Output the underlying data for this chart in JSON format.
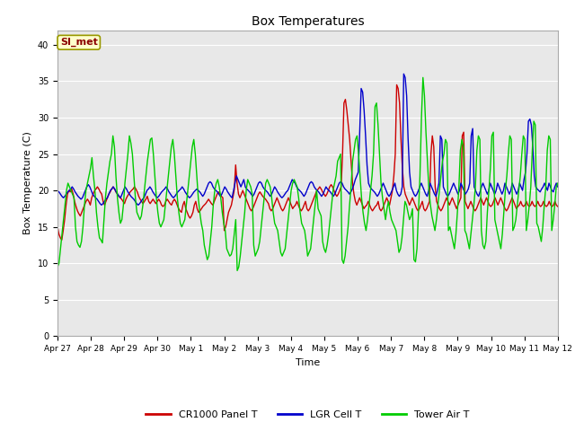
{
  "title": "Box Temperatures",
  "xlabel": "Time",
  "ylabel": "Box Temperature (C)",
  "ylim": [
    0,
    42
  ],
  "yticks": [
    0,
    5,
    10,
    15,
    20,
    25,
    30,
    35,
    40
  ],
  "plot_bg_color": "#e8e8e8",
  "fig_bg_color": "#ffffff",
  "annotation_text": "SI_met",
  "annotation_color": "#8b0000",
  "annotation_bg": "#ffffcc",
  "legend_labels": [
    "CR1000 Panel T",
    "LGR Cell T",
    "Tower Air T"
  ],
  "legend_colors": [
    "#cc0000",
    "#0000cc",
    "#00cc00"
  ],
  "xtick_labels": [
    "Apr 27",
    "Apr 28",
    "Apr 29",
    "Apr 30",
    "May 1",
    "May 2",
    "May 3",
    "May 4",
    "May 5",
    "May 6",
    "May 7",
    "May 8",
    "May 9",
    "May 10",
    "May 11",
    "May 12"
  ],
  "red_data": [
    15.0,
    14.0,
    13.5,
    13.2,
    14.5,
    16.0,
    18.0,
    19.5,
    20.0,
    19.8,
    20.2,
    19.5,
    18.5,
    17.8,
    17.2,
    16.8,
    16.5,
    17.0,
    17.5,
    18.0,
    18.5,
    18.8,
    18.5,
    18.0,
    19.0,
    19.5,
    20.0,
    20.2,
    20.5,
    20.2,
    19.8,
    19.5,
    18.5,
    18.0,
    18.5,
    19.0,
    19.5,
    19.8,
    20.2,
    20.5,
    20.2,
    19.8,
    19.5,
    19.2,
    19.0,
    18.8,
    18.5,
    18.2,
    18.8,
    19.2,
    19.5,
    19.8,
    20.0,
    20.2,
    20.5,
    20.2,
    19.8,
    19.2,
    18.8,
    18.5,
    18.2,
    18.5,
    18.8,
    19.2,
    18.5,
    18.2,
    18.5,
    18.8,
    18.5,
    18.2,
    18.5,
    18.8,
    18.5,
    18.0,
    17.8,
    18.0,
    18.5,
    18.8,
    18.5,
    18.2,
    18.0,
    18.5,
    18.8,
    18.5,
    18.0,
    17.5,
    17.2,
    17.0,
    18.0,
    18.5,
    17.5,
    17.0,
    16.5,
    16.2,
    16.5,
    17.0,
    18.0,
    18.5,
    17.5,
    17.0,
    17.2,
    17.5,
    17.8,
    18.0,
    18.2,
    18.5,
    18.8,
    18.5,
    18.2,
    18.0,
    18.5,
    19.0,
    19.5,
    19.8,
    19.5,
    19.2,
    19.0,
    14.5,
    15.0,
    16.0,
    17.0,
    17.5,
    18.0,
    19.0,
    20.0,
    23.5,
    21.0,
    19.5,
    19.0,
    19.5,
    20.0,
    19.5,
    19.0,
    18.5,
    18.0,
    17.5,
    17.2,
    17.5,
    18.0,
    18.5,
    19.0,
    19.5,
    19.8,
    19.5,
    19.2,
    19.0,
    18.8,
    18.5,
    18.2,
    17.5,
    17.2,
    17.5,
    18.0,
    18.5,
    19.0,
    18.5,
    18.0,
    17.5,
    17.2,
    17.5,
    18.0,
    18.5,
    19.0,
    18.5,
    18.0,
    17.5,
    17.8,
    18.0,
    18.5,
    18.0,
    17.5,
    17.2,
    17.5,
    18.0,
    18.5,
    17.5,
    17.2,
    17.5,
    18.0,
    18.5,
    19.0,
    19.5,
    20.0,
    20.2,
    20.5,
    20.2,
    19.8,
    19.5,
    19.2,
    19.5,
    20.0,
    20.5,
    20.8,
    20.5,
    20.0,
    19.5,
    19.2,
    19.5,
    20.0,
    20.5,
    25.0,
    32.0,
    32.5,
    31.0,
    29.0,
    27.0,
    24.0,
    21.0,
    19.5,
    18.5,
    18.0,
    18.5,
    19.0,
    18.5,
    18.0,
    17.5,
    17.8,
    18.0,
    18.5,
    18.0,
    17.5,
    17.2,
    17.5,
    17.8,
    18.0,
    18.5,
    17.5,
    17.2,
    17.5,
    18.0,
    18.5,
    19.0,
    18.5,
    18.0,
    19.0,
    20.0,
    22.0,
    25.0,
    34.5,
    34.0,
    32.0,
    27.0,
    23.0,
    20.5,
    19.5,
    19.0,
    18.5,
    18.0,
    18.5,
    19.0,
    18.5,
    18.0,
    17.5,
    17.2,
    17.5,
    18.0,
    18.5,
    17.5,
    17.2,
    17.5,
    18.0,
    18.5,
    25.0,
    27.5,
    26.0,
    20.5,
    18.5,
    18.0,
    17.5,
    17.2,
    17.5,
    18.0,
    18.5,
    19.0,
    18.5,
    18.0,
    18.5,
    19.0,
    18.5,
    18.0,
    17.5,
    18.0,
    18.5,
    19.0,
    27.5,
    28.0,
    18.5,
    18.0,
    17.5,
    18.0,
    18.5,
    18.0,
    17.5,
    17.2,
    17.5,
    18.0,
    18.5,
    19.0,
    18.5,
    18.0,
    18.5,
    19.0,
    18.5,
    18.0,
    17.8,
    18.0,
    18.5,
    19.0,
    18.5,
    18.0,
    18.5,
    19.0,
    18.5,
    18.0,
    17.5,
    17.2,
    17.5,
    18.0,
    18.5,
    19.0,
    18.5,
    18.0,
    17.5,
    17.8,
    18.0,
    18.5,
    18.0,
    17.8,
    18.0,
    18.5,
    18.0,
    17.8,
    18.0,
    18.5,
    18.0,
    17.8,
    18.0,
    18.5,
    18.0,
    17.8,
    18.0,
    18.5,
    18.0,
    17.8,
    18.0,
    18.5,
    18.0,
    17.8,
    18.0,
    18.5,
    18.0,
    17.8
  ],
  "blue_data": [
    20.0,
    19.8,
    19.5,
    19.2,
    19.0,
    19.2,
    19.5,
    19.8,
    20.0,
    20.2,
    20.5,
    20.2,
    19.8,
    19.5,
    19.2,
    19.0,
    18.8,
    19.0,
    19.5,
    20.0,
    20.5,
    20.8,
    20.5,
    20.0,
    19.5,
    19.2,
    19.0,
    18.8,
    18.5,
    18.2,
    18.0,
    18.2,
    18.5,
    18.8,
    19.0,
    19.5,
    20.0,
    20.2,
    20.5,
    20.2,
    19.8,
    19.5,
    19.2,
    19.0,
    19.5,
    20.0,
    20.5,
    20.2,
    19.8,
    19.5,
    19.2,
    19.0,
    18.8,
    18.5,
    18.2,
    18.0,
    18.2,
    18.5,
    18.8,
    19.0,
    19.5,
    20.0,
    20.2,
    20.5,
    20.2,
    19.8,
    19.5,
    19.2,
    19.0,
    19.2,
    19.5,
    19.8,
    20.0,
    20.2,
    20.5,
    20.2,
    19.8,
    19.5,
    19.2,
    19.0,
    19.2,
    19.5,
    19.8,
    20.0,
    20.2,
    20.5,
    20.2,
    19.8,
    19.5,
    19.2,
    19.0,
    19.2,
    19.5,
    19.8,
    20.0,
    20.2,
    20.0,
    19.8,
    19.5,
    19.2,
    19.5,
    20.0,
    20.5,
    21.0,
    21.2,
    21.0,
    20.5,
    20.2,
    20.0,
    19.8,
    19.5,
    19.2,
    19.5,
    20.0,
    20.5,
    20.2,
    19.8,
    19.5,
    19.2,
    19.0,
    20.0,
    21.0,
    22.0,
    21.5,
    21.0,
    20.5,
    21.0,
    21.5,
    20.5,
    20.2,
    20.0,
    19.8,
    19.5,
    19.2,
    19.5,
    20.0,
    20.5,
    21.0,
    21.2,
    21.0,
    20.5,
    20.2,
    20.0,
    19.8,
    19.5,
    19.2,
    19.5,
    20.0,
    20.5,
    20.2,
    19.8,
    19.5,
    19.2,
    19.0,
    19.2,
    19.5,
    19.8,
    20.0,
    20.5,
    21.0,
    21.5,
    21.2,
    21.0,
    20.5,
    20.2,
    20.0,
    19.8,
    19.5,
    19.2,
    19.5,
    20.0,
    20.5,
    21.0,
    21.2,
    21.0,
    20.5,
    20.2,
    20.0,
    19.8,
    19.5,
    19.2,
    19.5,
    20.0,
    20.5,
    20.2,
    20.0,
    19.8,
    19.5,
    19.2,
    19.5,
    20.0,
    20.5,
    21.0,
    21.2,
    21.0,
    20.5,
    20.2,
    20.0,
    19.8,
    19.5,
    19.8,
    20.2,
    20.8,
    21.5,
    22.0,
    22.5,
    28.0,
    34.0,
    33.5,
    31.0,
    27.5,
    23.5,
    21.0,
    20.5,
    20.2,
    20.0,
    19.8,
    19.5,
    19.2,
    19.5,
    20.0,
    20.5,
    21.0,
    20.5,
    20.0,
    19.5,
    19.2,
    19.5,
    20.0,
    20.5,
    21.0,
    20.0,
    19.5,
    19.2,
    19.5,
    20.5,
    36.0,
    35.5,
    33.0,
    27.0,
    22.5,
    20.5,
    20.0,
    19.5,
    19.2,
    19.5,
    20.0,
    20.5,
    21.0,
    20.5,
    20.0,
    19.5,
    19.2,
    20.0,
    21.0,
    20.5,
    20.0,
    19.5,
    19.2,
    20.0,
    21.0,
    27.5,
    27.0,
    20.5,
    20.0,
    19.5,
    19.2,
    19.5,
    20.0,
    20.5,
    21.0,
    20.5,
    20.0,
    19.5,
    20.0,
    21.0,
    20.5,
    20.0,
    19.5,
    19.8,
    20.2,
    21.0,
    27.5,
    28.5,
    20.5,
    20.0,
    19.5,
    19.2,
    19.8,
    20.5,
    21.0,
    20.5,
    20.0,
    19.5,
    20.0,
    21.0,
    20.5,
    20.0,
    19.5,
    20.0,
    21.0,
    20.5,
    20.0,
    19.5,
    20.0,
    21.0,
    20.5,
    20.0,
    19.5,
    20.0,
    21.0,
    20.5,
    20.0,
    19.5,
    20.0,
    21.0,
    20.5,
    20.0,
    21.5,
    22.5,
    25.0,
    29.5,
    29.8,
    29.0,
    26.0,
    22.0,
    20.5,
    20.2,
    20.0,
    19.8,
    20.2,
    20.5,
    21.0,
    20.5,
    20.0,
    21.0,
    20.5,
    20.0,
    19.8,
    20.5,
    21.0,
    20.5
  ],
  "green_data": [
    9.5,
    10.0,
    12.0,
    14.0,
    16.0,
    18.0,
    20.0,
    21.0,
    20.5,
    20.0,
    19.5,
    19.0,
    15.0,
    13.0,
    12.5,
    12.2,
    13.0,
    15.0,
    18.0,
    20.0,
    21.0,
    22.0,
    23.0,
    24.5,
    22.0,
    20.0,
    17.0,
    15.0,
    13.5,
    13.2,
    12.8,
    16.0,
    19.0,
    21.0,
    22.5,
    24.0,
    25.0,
    27.5,
    26.0,
    22.0,
    19.0,
    17.0,
    15.5,
    16.0,
    18.0,
    21.0,
    23.0,
    25.0,
    27.5,
    26.5,
    25.0,
    22.0,
    19.0,
    17.0,
    16.5,
    16.0,
    16.5,
    18.0,
    20.0,
    22.0,
    24.0,
    25.5,
    27.0,
    27.2,
    25.0,
    22.0,
    19.0,
    17.0,
    15.5,
    15.0,
    15.5,
    16.0,
    18.0,
    20.0,
    22.0,
    24.0,
    26.0,
    27.0,
    25.0,
    22.0,
    19.0,
    17.0,
    15.5,
    15.0,
    15.5,
    16.0,
    18.0,
    20.0,
    22.0,
    24.0,
    26.0,
    27.0,
    25.0,
    22.0,
    19.0,
    17.0,
    15.5,
    14.5,
    12.5,
    11.5,
    10.5,
    11.0,
    13.0,
    15.0,
    18.0,
    20.0,
    21.0,
    21.5,
    20.5,
    19.0,
    17.0,
    15.5,
    14.5,
    12.0,
    11.5,
    11.0,
    11.2,
    12.0,
    14.0,
    16.0,
    9.0,
    9.5,
    11.0,
    13.0,
    15.0,
    17.0,
    20.0,
    21.5,
    21.0,
    20.5,
    19.5,
    12.5,
    11.0,
    11.5,
    12.0,
    13.0,
    15.0,
    17.0,
    19.0,
    21.0,
    21.5,
    21.0,
    20.5,
    19.0,
    17.0,
    15.5,
    15.0,
    14.5,
    13.0,
    11.5,
    11.0,
    11.5,
    12.0,
    14.0,
    16.0,
    18.0,
    20.0,
    21.0,
    21.5,
    21.0,
    20.5,
    19.0,
    17.0,
    15.5,
    15.0,
    14.5,
    13.0,
    11.0,
    11.5,
    12.0,
    14.0,
    16.0,
    18.0,
    20.0,
    17.5,
    17.0,
    16.5,
    13.0,
    12.0,
    11.5,
    12.5,
    14.0,
    16.0,
    18.0,
    20.0,
    21.0,
    22.0,
    24.0,
    24.5,
    25.0,
    10.5,
    10.0,
    11.0,
    13.0,
    15.0,
    18.0,
    20.5,
    24.0,
    25.5,
    27.0,
    27.5,
    25.0,
    22.0,
    19.0,
    17.0,
    15.5,
    14.5,
    16.0,
    18.0,
    20.0,
    22.0,
    25.0,
    31.5,
    32.0,
    29.0,
    25.0,
    21.0,
    19.0,
    17.5,
    16.0,
    17.5,
    18.5,
    17.0,
    16.0,
    15.5,
    15.0,
    14.5,
    13.0,
    11.5,
    12.0,
    13.5,
    16.0,
    18.5,
    18.0,
    17.0,
    16.0,
    16.5,
    17.5,
    10.5,
    10.2,
    12.0,
    17.0,
    22.0,
    30.0,
    35.5,
    33.0,
    28.0,
    24.0,
    20.0,
    18.0,
    16.5,
    15.5,
    14.5,
    16.0,
    18.0,
    20.0,
    22.0,
    24.0,
    25.0,
    27.0,
    26.5,
    14.5,
    15.0,
    14.0,
    13.0,
    12.0,
    14.0,
    17.0,
    20.5,
    25.5,
    27.0,
    26.0,
    14.5,
    14.0,
    13.0,
    12.0,
    14.0,
    16.0,
    18.0,
    20.5,
    25.5,
    27.5,
    27.0,
    14.5,
    12.5,
    12.0,
    13.0,
    17.0,
    20.0,
    23.0,
    27.5,
    28.0,
    16.0,
    15.0,
    14.0,
    13.0,
    12.0,
    14.0,
    17.0,
    20.0,
    22.0,
    25.0,
    27.5,
    27.0,
    14.5,
    15.0,
    16.0,
    18.0,
    20.0,
    22.0,
    25.0,
    27.5,
    27.0,
    14.5,
    16.0,
    18.0,
    20.5,
    25.5,
    29.5,
    29.0,
    15.5,
    15.0,
    14.0,
    13.0,
    15.0,
    18.0,
    20.5,
    25.5,
    27.5,
    27.0,
    14.5,
    16.0,
    18.0,
    20.5,
    21.0
  ]
}
